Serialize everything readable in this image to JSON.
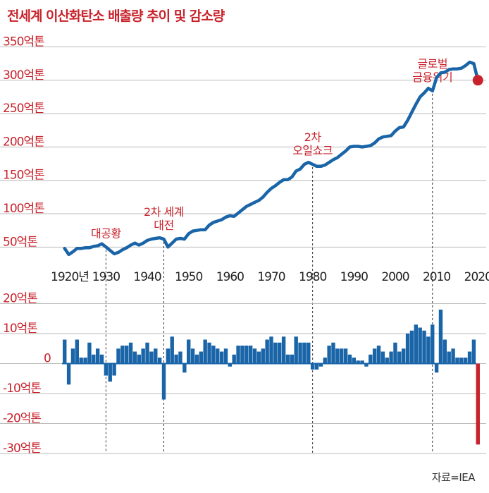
{
  "title": "전세계 이산화탄소 배출량 추이 및 감소량",
  "source": "자료=IEA",
  "colors": {
    "accent": "#c8232c",
    "series": "#1a64a8",
    "grid": "#bbbbbb"
  },
  "chart_data": [
    {
      "type": "line",
      "unit": "억톤",
      "ylim": [
        25,
        360
      ],
      "xlim": [
        1918,
        2022
      ],
      "yticks": [
        {
          "value": 50,
          "label": "50억톤"
        },
        {
          "value": 100,
          "label": "100억톤"
        },
        {
          "value": 150,
          "label": "150억톤"
        },
        {
          "value": 200,
          "label": "200억톤"
        },
        {
          "value": 250,
          "label": "250억톤"
        },
        {
          "value": 300,
          "label": "300억톤"
        },
        {
          "value": 350,
          "label": "350억톤"
        }
      ],
      "xticks": [
        {
          "value": 1920,
          "label": "1920년"
        },
        {
          "value": 1930,
          "label": "1930"
        },
        {
          "value": 1940,
          "label": "1940"
        },
        {
          "value": 1950,
          "label": "1950"
        },
        {
          "value": 1960,
          "label": "1960"
        },
        {
          "value": 1970,
          "label": "1970"
        },
        {
          "value": 1980,
          "label": "1980"
        },
        {
          "value": 1990,
          "label": "1990"
        },
        {
          "value": 2000,
          "label": "2000"
        },
        {
          "value": 2010,
          "label": "2010"
        },
        {
          "value": 2020,
          "label": "2020"
        }
      ],
      "series": [
        {
          "x": [
            1920,
            1921,
            1922,
            1923,
            1924,
            1925,
            1926,
            1927,
            1928,
            1929,
            1930,
            1931,
            1932,
            1933,
            1934,
            1935,
            1936,
            1937,
            1938,
            1939,
            1940,
            1941,
            1942,
            1943,
            1944,
            1945,
            1946,
            1947,
            1948,
            1949,
            1950,
            1951,
            1952,
            1953,
            1954,
            1955,
            1956,
            1957,
            1958,
            1959,
            1960,
            1961,
            1962,
            1963,
            1964,
            1965,
            1966,
            1967,
            1968,
            1969,
            1970,
            1971,
            1972,
            1973,
            1974,
            1975,
            1976,
            1977,
            1978,
            1979,
            1980,
            1981,
            1982,
            1983,
            1984,
            1985,
            1986,
            1987,
            1988,
            1989,
            1990,
            1991,
            1992,
            1993,
            1994,
            1995,
            1996,
            1997,
            1998,
            1999,
            2000,
            2001,
            2002,
            2003,
            2004,
            2005,
            2006,
            2007,
            2008,
            2009,
            2010,
            2011,
            2012,
            2013,
            2014,
            2015,
            2016,
            2017,
            2018,
            2019,
            2020
          ],
          "y": [
            48,
            39,
            43,
            48,
            48,
            49,
            49,
            51,
            52,
            55,
            50,
            45,
            40,
            42,
            46,
            49,
            53,
            56,
            53,
            56,
            60,
            62,
            63,
            64,
            62,
            50,
            56,
            62,
            63,
            62,
            70,
            74,
            75,
            76,
            76,
            83,
            87,
            89,
            91,
            95,
            97,
            96,
            101,
            106,
            111,
            114,
            117,
            120,
            125,
            132,
            138,
            142,
            147,
            151,
            151,
            155,
            164,
            167,
            174,
            177,
            174,
            171,
            171,
            173,
            177,
            181,
            184,
            189,
            194,
            200,
            201,
            201,
            200,
            201,
            202,
            206,
            212,
            215,
            216,
            217,
            224,
            229,
            230,
            240,
            252,
            264,
            275,
            281,
            288,
            284,
            304,
            311,
            312,
            316,
            317,
            317,
            318,
            322,
            327,
            325,
            300
          ]
        }
      ],
      "end_marker": {
        "x": 2020,
        "y": 300
      },
      "annotations": [
        {
          "x": 1930,
          "lines": [
            "대공황"
          ]
        },
        {
          "x": 1944,
          "lines": [
            "2차 세계",
            "대전"
          ]
        },
        {
          "x": 1980,
          "lines": [
            "2차",
            "오일쇼크"
          ]
        },
        {
          "x": 2009,
          "lines": [
            "글로벌",
            "금융위기"
          ]
        }
      ]
    },
    {
      "type": "bar",
      "unit": "억톤",
      "ylim": [
        -30,
        22
      ],
      "yticks": [
        {
          "value": 20,
          "label": "20억톤"
        },
        {
          "value": 10,
          "label": "10억톤"
        },
        {
          "value": 0,
          "label": "0"
        },
        {
          "value": -10,
          "label": "-10억톤"
        },
        {
          "value": -20,
          "label": "-20억톤"
        },
        {
          "value": -30,
          "label": "-30억톤"
        }
      ],
      "series": [
        {
          "x": [
            1920,
            1921,
            1922,
            1923,
            1924,
            1925,
            1926,
            1927,
            1928,
            1929,
            1930,
            1931,
            1932,
            1933,
            1934,
            1935,
            1936,
            1937,
            1938,
            1939,
            1940,
            1941,
            1942,
            1943,
            1944,
            1945,
            1946,
            1947,
            1948,
            1949,
            1950,
            1951,
            1952,
            1953,
            1954,
            1955,
            1956,
            1957,
            1958,
            1959,
            1960,
            1961,
            1962,
            1963,
            1964,
            1965,
            1966,
            1967,
            1968,
            1969,
            1970,
            1971,
            1972,
            1973,
            1974,
            1975,
            1976,
            1977,
            1978,
            1979,
            1980,
            1981,
            1982,
            1983,
            1984,
            1985,
            1986,
            1987,
            1988,
            1989,
            1990,
            1991,
            1992,
            1993,
            1994,
            1995,
            1996,
            1997,
            1998,
            1999,
            2000,
            2001,
            2002,
            2003,
            2004,
            2005,
            2006,
            2007,
            2008,
            2009,
            2010,
            2011,
            2012,
            2013,
            2014,
            2015,
            2016,
            2017,
            2018,
            2019,
            2020
          ],
          "values": [
            8,
            -7,
            5,
            8,
            2,
            2,
            7,
            3,
            5,
            3,
            -4,
            -6,
            -4,
            5,
            6,
            6,
            7,
            4,
            3,
            5,
            7,
            4,
            5,
            2,
            -12,
            5,
            9,
            3,
            4,
            -3,
            8,
            5,
            3,
            4,
            8,
            7,
            6,
            5,
            4,
            5,
            -1,
            3,
            6,
            6,
            6,
            6,
            5,
            4,
            5,
            8,
            9,
            7,
            7,
            9,
            3,
            3,
            9,
            7,
            7,
            7,
            -2,
            -2,
            -1,
            2,
            6,
            7,
            5,
            5,
            5,
            3,
            2,
            1,
            1,
            -1,
            3,
            5,
            6,
            4,
            2,
            4,
            7,
            4,
            5,
            10,
            11,
            13,
            12,
            11,
            9,
            13,
            -3,
            18,
            8,
            4,
            5,
            2,
            2,
            2,
            4,
            8,
            -27
          ]
        }
      ],
      "highlight": {
        "x": 2020,
        "color": "#c8232c"
      }
    }
  ]
}
